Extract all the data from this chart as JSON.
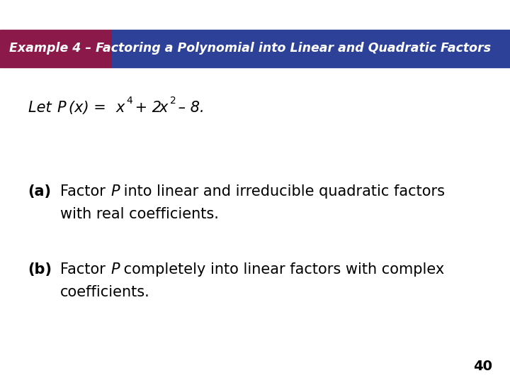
{
  "bg_color": "#ffffff",
  "header_bar_color": "#2e4199",
  "header_accent_color": "#8b1a4a",
  "header_text": "Example 4 – Factoring a Polynomial into Linear and Quadratic Factors",
  "header_text_color": "#ffffff",
  "header_font_size": 12.5,
  "page_number": "40",
  "body_text_color": "#000000",
  "body_font_size": 15
}
